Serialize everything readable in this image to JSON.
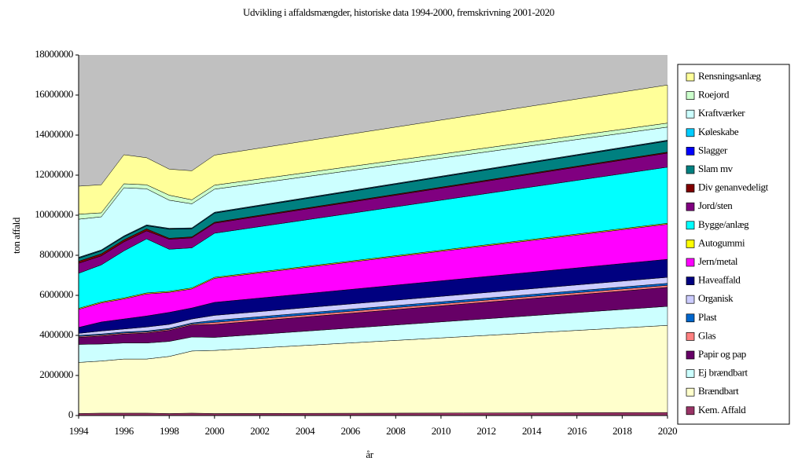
{
  "chart_data": {
    "type": "stacked_area",
    "title": "Udvikling i affaldsmængder, historiske data 1994-2000, fremskrivning 2001-2020",
    "x_label": "år",
    "y_label": "ton affald",
    "x": [
      1994,
      1995,
      1996,
      1997,
      1998,
      1999,
      2000,
      2001,
      2002,
      2003,
      2004,
      2005,
      2006,
      2007,
      2008,
      2009,
      2010,
      2011,
      2012,
      2013,
      2014,
      2015,
      2016,
      2017,
      2018,
      2019,
      2020
    ],
    "xlim": [
      1994,
      2020
    ],
    "xticks": [
      1994,
      1996,
      1998,
      2000,
      2002,
      2004,
      2006,
      2008,
      2010,
      2012,
      2014,
      2016,
      2018,
      2020
    ],
    "ylim": [
      0,
      18000000
    ],
    "yticks": [
      0,
      2000000,
      4000000,
      6000000,
      8000000,
      10000000,
      12000000,
      14000000,
      16000000,
      18000000
    ],
    "plot_background": "#c0c0c0",
    "legend": "right",
    "series": [
      {
        "name": "Kem. Affald",
        "color": "#993366",
        "values": [
          100000,
          120000,
          120000,
          120000,
          100000,
          120000,
          100000,
          102500,
          105000,
          107500,
          110000,
          112500,
          115000,
          117500,
          120000,
          122500,
          125000,
          127500,
          130000,
          132500,
          135000,
          137500,
          140000,
          142500,
          145000,
          147500,
          150000
        ]
      },
      {
        "name": "Brændbart",
        "color": "#ffffcc",
        "values": [
          2550000,
          2600000,
          2700000,
          2700000,
          2850000,
          3100000,
          3150000,
          3210000,
          3270000,
          3330000,
          3390000,
          3450000,
          3510000,
          3570000,
          3630000,
          3690000,
          3750000,
          3810000,
          3870000,
          3930000,
          3990000,
          4050000,
          4110000,
          4170000,
          4230000,
          4290000,
          4350000
        ]
      },
      {
        "name": "Ej brændbart",
        "color": "#ccffff",
        "values": [
          900000,
          850000,
          800000,
          800000,
          750000,
          700000,
          650000,
          665000,
          680000,
          695000,
          710000,
          725000,
          740000,
          755000,
          770000,
          785000,
          800000,
          815000,
          830000,
          845000,
          860000,
          875000,
          890000,
          905000,
          920000,
          935000,
          950000
        ]
      },
      {
        "name": "Papir og pap",
        "color": "#660066",
        "values": [
          350000,
          400000,
          450000,
          500000,
          550000,
          600000,
          650000,
          665000,
          680000,
          695000,
          710000,
          725000,
          740000,
          755000,
          770000,
          785000,
          800000,
          815000,
          830000,
          845000,
          860000,
          875000,
          890000,
          905000,
          920000,
          935000,
          950000
        ]
      },
      {
        "name": "Glas",
        "color": "#ff8080",
        "values": [
          50000,
          50000,
          50000,
          50000,
          50000,
          50000,
          100000,
          100000,
          100000,
          100000,
          100000,
          100000,
          100000,
          100000,
          100000,
          100000,
          100000,
          100000,
          100000,
          100000,
          100000,
          100000,
          100000,
          100000,
          100000,
          100000,
          100000
        ]
      },
      {
        "name": "Plast",
        "color": "#0066cc",
        "values": [
          50000,
          50000,
          50000,
          50000,
          50000,
          50000,
          100000,
          100000,
          100000,
          100000,
          100000,
          100000,
          100000,
          100000,
          100000,
          100000,
          100000,
          100000,
          100000,
          100000,
          100000,
          100000,
          100000,
          100000,
          100000,
          100000,
          100000
        ]
      },
      {
        "name": "Organisk",
        "color": "#ccccff",
        "values": [
          100000,
          150000,
          150000,
          200000,
          200000,
          200000,
          250000,
          252500,
          255000,
          257500,
          260000,
          262500,
          265000,
          267500,
          270000,
          272500,
          275000,
          277500,
          280000,
          282500,
          285000,
          287500,
          290000,
          292500,
          295000,
          297500,
          300000
        ]
      },
      {
        "name": "Haveaffald",
        "color": "#000080",
        "values": [
          300000,
          450000,
          500000,
          550000,
          600000,
          550000,
          650000,
          662500,
          675000,
          687500,
          700000,
          712500,
          725000,
          737500,
          750000,
          762500,
          775000,
          787500,
          800000,
          812500,
          825000,
          837500,
          850000,
          862500,
          875000,
          887500,
          900000
        ]
      },
      {
        "name": "Jern/metal",
        "color": "#ff00ff",
        "values": [
          900000,
          950000,
          1000000,
          1100000,
          1000000,
          950000,
          1200000,
          1227500,
          1255000,
          1282500,
          1310000,
          1337500,
          1365000,
          1392500,
          1420000,
          1447500,
          1475000,
          1502500,
          1530000,
          1557500,
          1585000,
          1612500,
          1640000,
          1667500,
          1695000,
          1722500,
          1750000
        ]
      },
      {
        "name": "Autogummi",
        "color": "#ffff00",
        "values": [
          50000,
          50000,
          50000,
          50000,
          50000,
          50000,
          50000,
          50000,
          50000,
          50000,
          50000,
          50000,
          50000,
          50000,
          50000,
          50000,
          50000,
          50000,
          50000,
          50000,
          50000,
          50000,
          50000,
          50000,
          50000,
          50000,
          50000
        ]
      },
      {
        "name": "Bygge/anlæg",
        "color": "#00ffff",
        "values": [
          1750000,
          1850000,
          2350000,
          2700000,
          2100000,
          2000000,
          2200000,
          2230000,
          2260000,
          2290000,
          2320000,
          2350000,
          2380000,
          2410000,
          2440000,
          2470000,
          2500000,
          2530000,
          2560000,
          2590000,
          2620000,
          2650000,
          2680000,
          2710000,
          2740000,
          2770000,
          2800000
        ]
      },
      {
        "name": "Jord/sten",
        "color": "#800080",
        "values": [
          500000,
          450000,
          450000,
          400000,
          500000,
          500000,
          500000,
          510000,
          520000,
          530000,
          540000,
          550000,
          560000,
          570000,
          580000,
          590000,
          600000,
          610000,
          620000,
          630000,
          640000,
          650000,
          660000,
          670000,
          680000,
          690000,
          700000
        ]
      },
      {
        "name": "Div genanvedeligt",
        "color": "#800000",
        "values": [
          100000,
          100000,
          100000,
          100000,
          50000,
          50000,
          50000,
          50000,
          50000,
          50000,
          50000,
          50000,
          50000,
          50000,
          50000,
          50000,
          50000,
          50000,
          50000,
          50000,
          50000,
          50000,
          50000,
          50000,
          50000,
          50000,
          50000
        ]
      },
      {
        "name": "Slam mv",
        "color": "#008080",
        "values": [
          150000,
          150000,
          150000,
          150000,
          450000,
          400000,
          450000,
          455000,
          460000,
          465000,
          470000,
          475000,
          480000,
          485000,
          490000,
          495000,
          500000,
          505000,
          510000,
          515000,
          520000,
          525000,
          530000,
          535000,
          540000,
          545000,
          550000
        ]
      },
      {
        "name": "Slagger",
        "color": "#0000ff",
        "values": [
          20000,
          20000,
          20000,
          20000,
          20000,
          20000,
          20000,
          20000,
          20000,
          20000,
          20000,
          20000,
          20000,
          20000,
          20000,
          20000,
          20000,
          20000,
          20000,
          20000,
          20000,
          20000,
          20000,
          20000,
          20000,
          20000,
          20000
        ]
      },
      {
        "name": "Køleskabe",
        "color": "#00ccff",
        "values": [
          30000,
          30000,
          30000,
          30000,
          30000,
          30000,
          30000,
          30000,
          30000,
          30000,
          30000,
          30000,
          30000,
          30000,
          30000,
          30000,
          30000,
          30000,
          30000,
          30000,
          30000,
          30000,
          30000,
          30000,
          30000,
          30000,
          30000
        ]
      },
      {
        "name": "Kraftværker",
        "color": "#ccffff",
        "values": [
          1900000,
          1650000,
          2400000,
          1800000,
          1400000,
          1200000,
          1150000,
          1125000,
          1100000,
          1075000,
          1050000,
          1025000,
          1000000,
          975000,
          950000,
          925000,
          900000,
          875000,
          850000,
          825000,
          800000,
          775000,
          750000,
          725000,
          700000,
          675000,
          650000
        ]
      },
      {
        "name": "Roejord",
        "color": "#ccffcc",
        "values": [
          250000,
          200000,
          200000,
          200000,
          250000,
          200000,
          200000,
          200000,
          200000,
          200000,
          200000,
          200000,
          200000,
          200000,
          200000,
          200000,
          200000,
          200000,
          200000,
          200000,
          200000,
          200000,
          200000,
          200000,
          200000,
          200000,
          200000
        ]
      },
      {
        "name": "Rensningsanlæg",
        "color": "#ffff99",
        "values": [
          1400000,
          1400000,
          1450000,
          1350000,
          1300000,
          1450000,
          1500000,
          1520000,
          1540000,
          1560000,
          1580000,
          1600000,
          1620000,
          1640000,
          1660000,
          1680000,
          1700000,
          1720000,
          1740000,
          1760000,
          1780000,
          1800000,
          1820000,
          1840000,
          1860000,
          1880000,
          1900000
        ]
      }
    ]
  }
}
